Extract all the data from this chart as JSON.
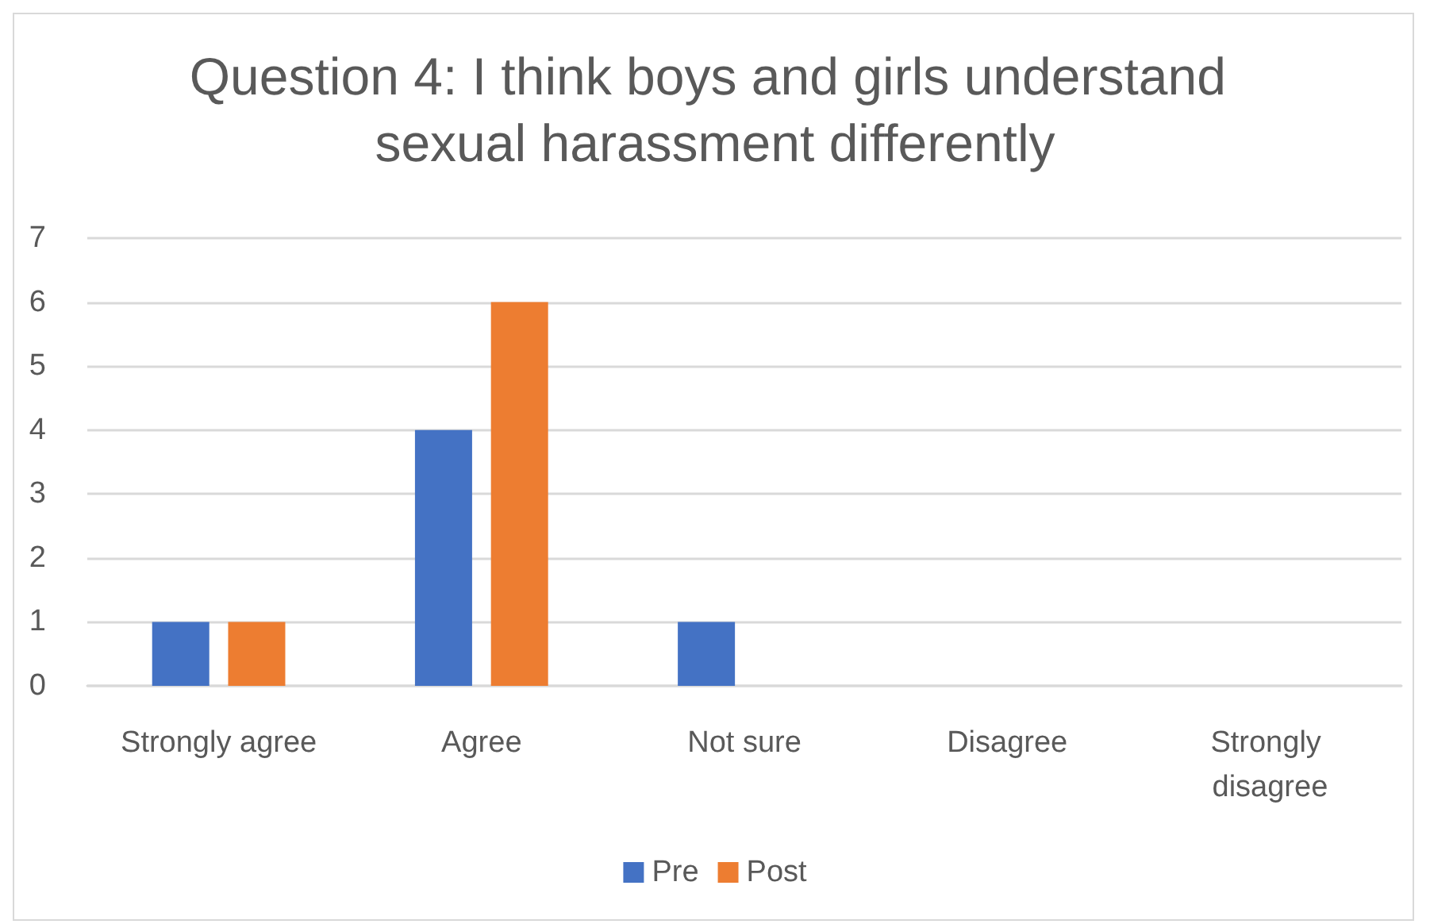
{
  "chart_data": {
    "type": "bar",
    "title": "Question 4: I think boys and girls understand sexual harassment differently",
    "categories": [
      "Strongly agree",
      "Agree",
      "Not sure",
      "Disagree",
      "Strongly disagree"
    ],
    "series": [
      {
        "name": "Pre",
        "color": "#4472c4",
        "values": [
          1,
          4,
          1,
          0,
          0
        ]
      },
      {
        "name": "Post",
        "color": "#ed7d31",
        "values": [
          1,
          6,
          0,
          0,
          0
        ]
      }
    ],
    "ylim": [
      0,
      7
    ],
    "yticks": [
      0,
      1,
      2,
      3,
      4,
      5,
      6,
      7
    ],
    "grid": "y",
    "legend": "bottom"
  }
}
